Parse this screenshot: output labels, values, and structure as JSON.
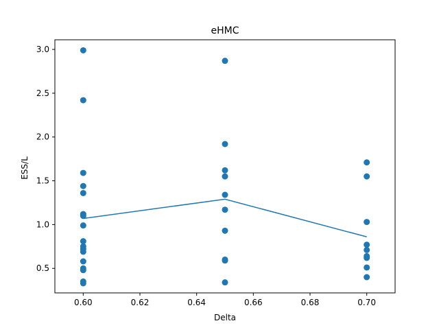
{
  "chart_data": {
    "type": "scatter",
    "title": "eHMC",
    "xlabel": "Delta",
    "ylabel": "ESS/L",
    "xlim": [
      0.59,
      0.71
    ],
    "ylim": [
      0.22,
      3.11
    ],
    "x_ticks": [
      0.6,
      0.62,
      0.64,
      0.66,
      0.68,
      0.7
    ],
    "x_tick_labels": [
      "0.60",
      "0.62",
      "0.64",
      "0.66",
      "0.68",
      "0.70"
    ],
    "y_ticks": [
      0.5,
      1.0,
      1.5,
      2.0,
      2.5,
      3.0
    ],
    "y_tick_labels": [
      "0.5",
      "1.0",
      "1.5",
      "2.0",
      "2.5",
      "3.0"
    ],
    "grid": false,
    "colors": {
      "points": "#1f77b4",
      "line": "#1f77b4"
    },
    "series": [
      {
        "kind": "scatter",
        "points": [
          {
            "x": 0.6,
            "y": 2.99
          },
          {
            "x": 0.6,
            "y": 2.42
          },
          {
            "x": 0.6,
            "y": 1.59
          },
          {
            "x": 0.6,
            "y": 1.44
          },
          {
            "x": 0.6,
            "y": 1.36
          },
          {
            "x": 0.6,
            "y": 1.12
          },
          {
            "x": 0.6,
            "y": 1.1
          },
          {
            "x": 0.6,
            "y": 0.99
          },
          {
            "x": 0.6,
            "y": 0.81
          },
          {
            "x": 0.6,
            "y": 0.75
          },
          {
            "x": 0.6,
            "y": 0.72
          },
          {
            "x": 0.6,
            "y": 0.69
          },
          {
            "x": 0.6,
            "y": 0.58
          },
          {
            "x": 0.6,
            "y": 0.5
          },
          {
            "x": 0.6,
            "y": 0.48
          },
          {
            "x": 0.6,
            "y": 0.35
          },
          {
            "x": 0.6,
            "y": 0.33
          },
          {
            "x": 0.65,
            "y": 2.87
          },
          {
            "x": 0.65,
            "y": 1.92
          },
          {
            "x": 0.65,
            "y": 1.62
          },
          {
            "x": 0.65,
            "y": 1.55
          },
          {
            "x": 0.65,
            "y": 1.34
          },
          {
            "x": 0.65,
            "y": 1.17
          },
          {
            "x": 0.65,
            "y": 0.93
          },
          {
            "x": 0.65,
            "y": 0.6
          },
          {
            "x": 0.65,
            "y": 0.59
          },
          {
            "x": 0.65,
            "y": 0.34
          },
          {
            "x": 0.7,
            "y": 1.71
          },
          {
            "x": 0.7,
            "y": 1.55
          },
          {
            "x": 0.7,
            "y": 1.03
          },
          {
            "x": 0.7,
            "y": 0.77
          },
          {
            "x": 0.7,
            "y": 0.71
          },
          {
            "x": 0.7,
            "y": 0.64
          },
          {
            "x": 0.7,
            "y": 0.62
          },
          {
            "x": 0.7,
            "y": 0.51
          },
          {
            "x": 0.7,
            "y": 0.4
          }
        ]
      },
      {
        "kind": "line",
        "x": [
          0.6,
          0.65,
          0.7
        ],
        "y": [
          1.07,
          1.29,
          0.86
        ]
      }
    ]
  }
}
